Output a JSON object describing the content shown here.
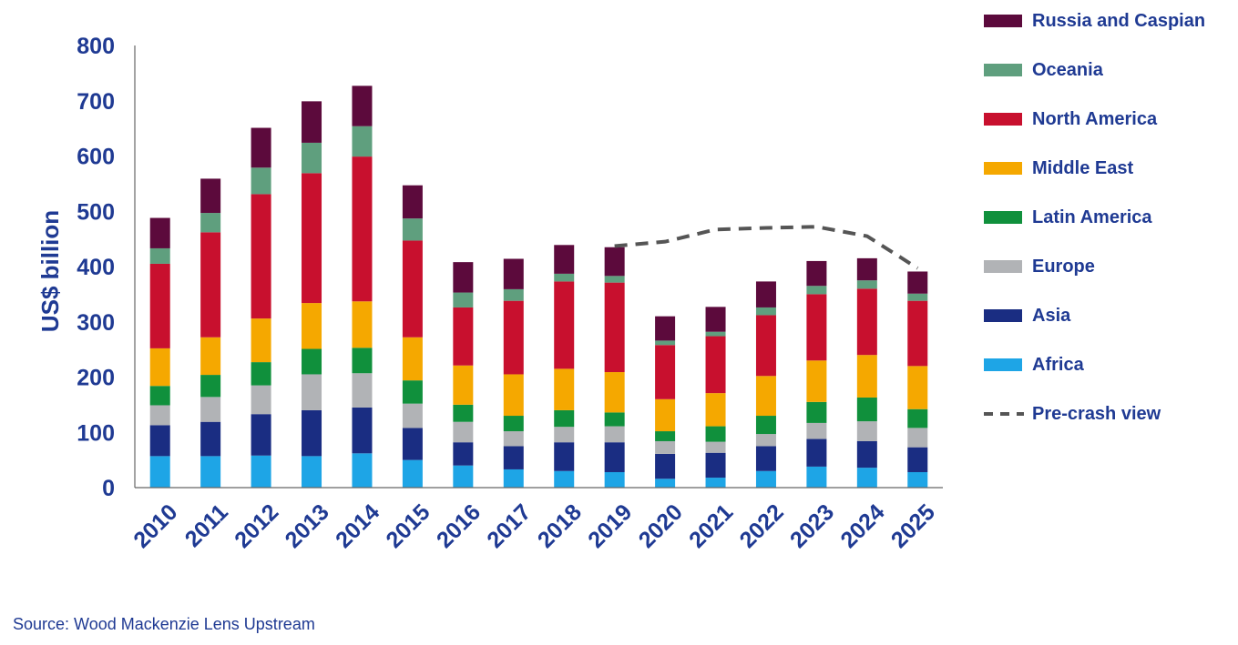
{
  "chart_data": {
    "type": "bar",
    "stacked": true,
    "ylabel": "US$ billion",
    "xlabel": "",
    "ylim": [
      0,
      800
    ],
    "yticks": [
      0,
      100,
      200,
      300,
      400,
      500,
      600,
      700,
      800
    ],
    "categories": [
      "2010",
      "2011",
      "2012",
      "2013",
      "2014",
      "2015",
      "2016",
      "2017",
      "2018",
      "2019",
      "2020",
      "2021",
      "2022",
      "2023",
      "2024",
      "2025"
    ],
    "series": [
      {
        "name": "Africa",
        "color": "#1ea5e6",
        "values": [
          57,
          57,
          58,
          57,
          62,
          50,
          40,
          33,
          30,
          28,
          16,
          18,
          30,
          38,
          36,
          28
        ]
      },
      {
        "name": "Asia",
        "color": "#1a2d82",
        "values": [
          56,
          62,
          75,
          83,
          83,
          58,
          42,
          42,
          52,
          54,
          45,
          45,
          45,
          50,
          48,
          45
        ]
      },
      {
        "name": "Europe",
        "color": "#b1b3b6",
        "values": [
          36,
          45,
          52,
          65,
          62,
          44,
          37,
          27,
          28,
          29,
          23,
          20,
          22,
          29,
          36,
          35
        ]
      },
      {
        "name": "Latin America",
        "color": "#10903c",
        "values": [
          35,
          40,
          42,
          46,
          46,
          42,
          31,
          28,
          30,
          25,
          18,
          28,
          33,
          38,
          43,
          34
        ]
      },
      {
        "name": "Middle East",
        "color": "#f5a800",
        "values": [
          68,
          68,
          79,
          83,
          84,
          78,
          71,
          75,
          75,
          73,
          58,
          60,
          72,
          75,
          77,
          78
        ]
      },
      {
        "name": "North America",
        "color": "#c8102e",
        "values": [
          153,
          190,
          225,
          235,
          262,
          175,
          105,
          133,
          158,
          162,
          98,
          103,
          110,
          120,
          120,
          118
        ]
      },
      {
        "name": "Oceania",
        "color": "#5f9f7e",
        "values": [
          28,
          35,
          48,
          55,
          55,
          40,
          27,
          21,
          14,
          12,
          8,
          8,
          14,
          15,
          15,
          13
        ]
      },
      {
        "name": "Russia and Caspian",
        "color": "#5c0a3c",
        "values": [
          55,
          62,
          72,
          75,
          73,
          60,
          55,
          55,
          52,
          52,
          44,
          45,
          47,
          45,
          40,
          40
        ]
      }
    ],
    "line_series": {
      "name": "Pre-crash view",
      "color": "#555555",
      "x": [
        "2019",
        "2020",
        "2021",
        "2022",
        "2023",
        "2024",
        "2025"
      ],
      "values": [
        437,
        445,
        467,
        470,
        472,
        455,
        397
      ]
    },
    "legend_position": "right",
    "grid": false
  },
  "source": "Source: Wood Mackenzie Lens Upstream"
}
